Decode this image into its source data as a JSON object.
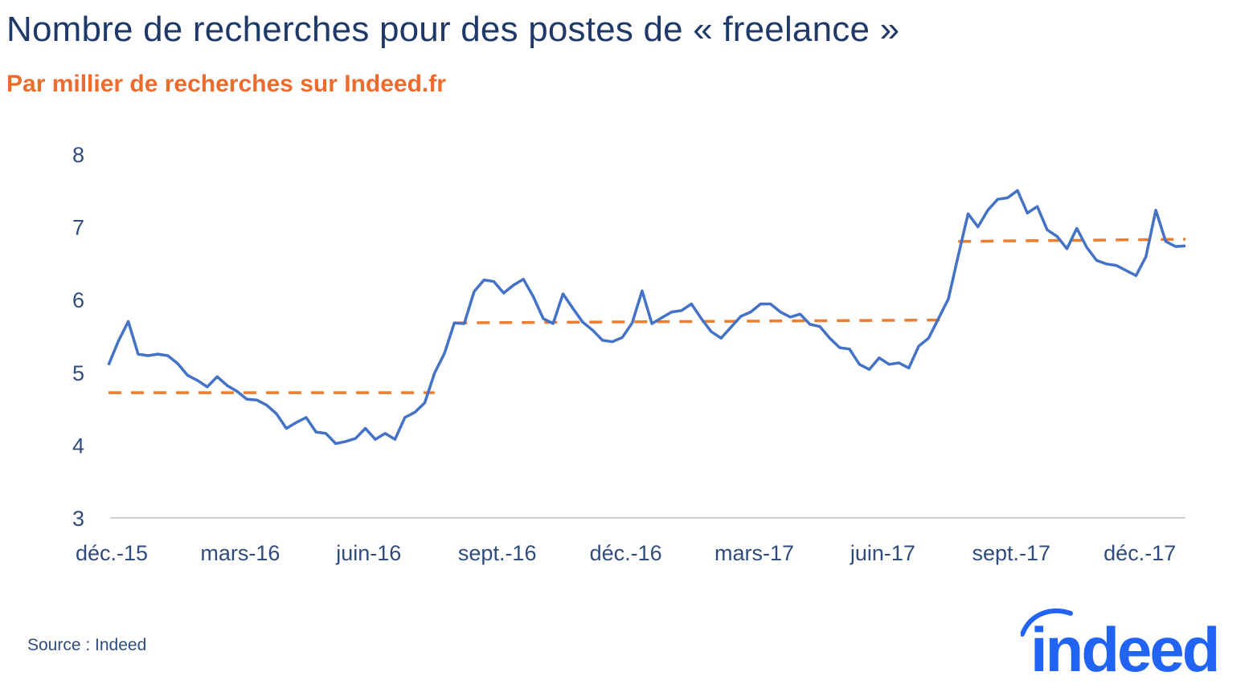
{
  "chart_data": {
    "type": "line",
    "title": "Nombre de recherches pour des postes de « freelance »",
    "subtitle": "Par millier de recherches sur Indeed.fr",
    "xlabel": "",
    "ylabel": "",
    "ylim": [
      3,
      8
    ],
    "yticks": [
      "3",
      "4",
      "5",
      "6",
      "7",
      "8"
    ],
    "xticks": [
      "déc.-15",
      "mars-16",
      "juin-16",
      "sept.-16",
      "déc.-16",
      "mars-17",
      "juin-17",
      "sept.-17",
      "déc.-17"
    ],
    "grid": false,
    "legend": "none",
    "series": [
      {
        "color": "#4472c4",
        "values": [
          5.1,
          5.43,
          5.7,
          5.25,
          5.23,
          5.25,
          5.23,
          5.12,
          4.96,
          4.89,
          4.8,
          4.94,
          4.82,
          4.74,
          4.63,
          4.62,
          4.55,
          4.43,
          4.23,
          4.31,
          4.38,
          4.18,
          4.16,
          4.02,
          4.05,
          4.09,
          4.23,
          4.08,
          4.16,
          4.08,
          4.38,
          4.45,
          4.58,
          4.99,
          5.26,
          5.68,
          5.67,
          6.11,
          6.27,
          6.25,
          6.09,
          6.2,
          6.28,
          6.04,
          5.74,
          5.67,
          6.08,
          5.88,
          5.69,
          5.58,
          5.44,
          5.42,
          5.48,
          5.68,
          6.12,
          5.67,
          5.75,
          5.83,
          5.85,
          5.94,
          5.74,
          5.56,
          5.47,
          5.62,
          5.77,
          5.83,
          5.94,
          5.94,
          5.83,
          5.76,
          5.8,
          5.66,
          5.63,
          5.47,
          5.34,
          5.32,
          5.11,
          5.04,
          5.2,
          5.11,
          5.13,
          5.06,
          5.36,
          5.47,
          5.74,
          6.01,
          6.6,
          7.18,
          7.0,
          7.23,
          7.38,
          7.4,
          7.5,
          7.19,
          7.28,
          6.96,
          6.87,
          6.7,
          6.98,
          6.72,
          6.54,
          6.49,
          6.47,
          6.4,
          6.33,
          6.59,
          7.23,
          6.8,
          6.73,
          6.74
        ]
      }
    ],
    "averages": {
      "color": "#ed7d31",
      "style": "dashed",
      "segments": [
        {
          "start_index": 0,
          "end_index": 33,
          "from": 4.72,
          "to": 4.72
        },
        {
          "start_index": 35,
          "end_index": 85,
          "from": 5.68,
          "to": 5.72
        },
        {
          "start_index": 86,
          "end_index": 109,
          "from": 6.8,
          "to": 6.83
        }
      ]
    }
  },
  "source": "Source : Indeed",
  "logo": {
    "text": "indeed",
    "color": "#2164f3"
  }
}
